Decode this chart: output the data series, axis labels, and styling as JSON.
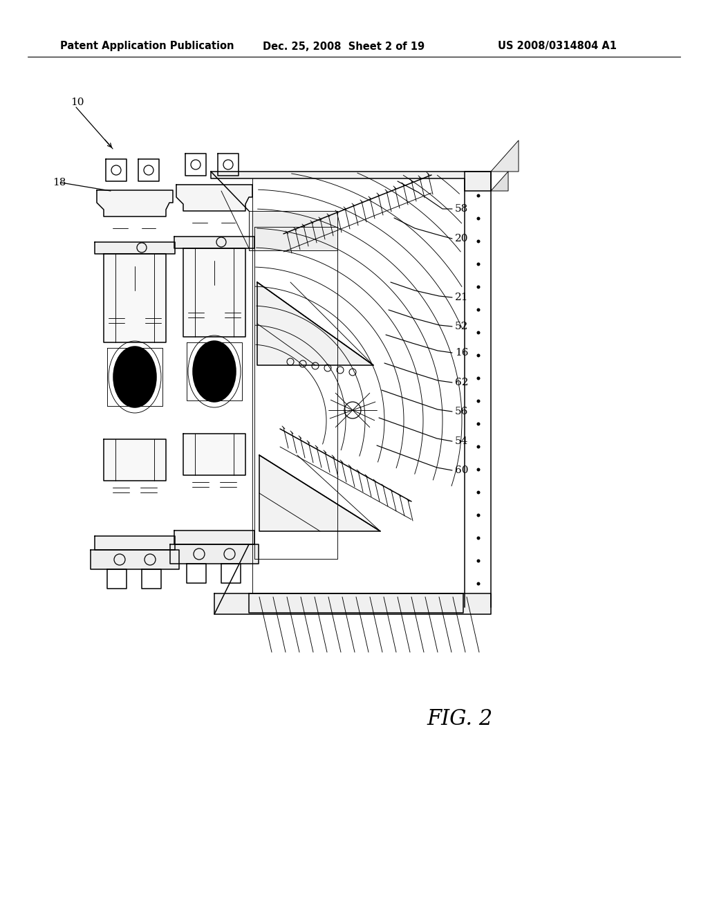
{
  "bg_color": "#ffffff",
  "header_left": "Patent Application Publication",
  "header_mid": "Dec. 25, 2008  Sheet 2 of 19",
  "header_right": "US 2008/0314804 A1",
  "fig_label": "FIG. 2",
  "label_10": "10",
  "label_18": "18",
  "label_58": "58",
  "label_20": "20",
  "label_21": "21",
  "label_52": "52",
  "label_16": "16",
  "label_62": "62",
  "label_56": "56",
  "label_54": "54",
  "label_60": "60",
  "header_fontsize": 10.5,
  "label_fontsize": 11,
  "fig_label_fontsize": 22
}
